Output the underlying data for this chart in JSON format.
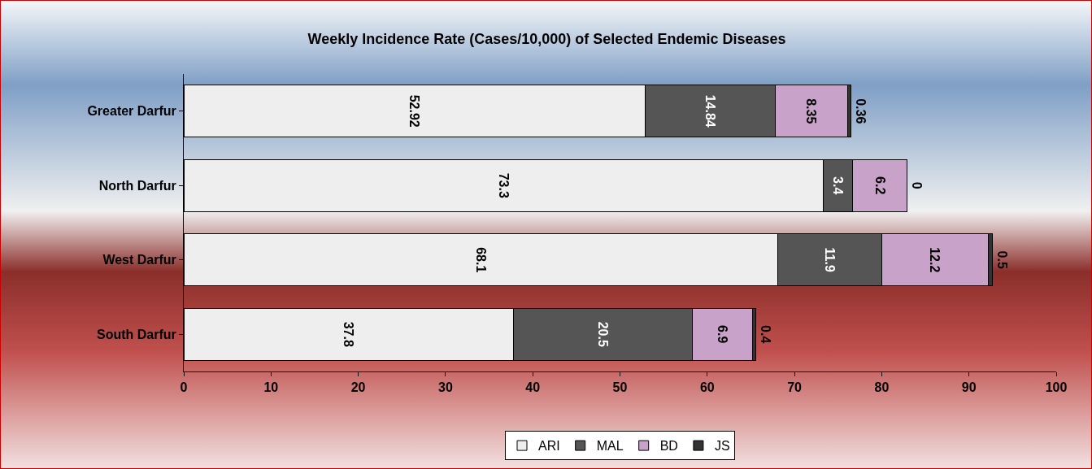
{
  "chart_data": {
    "type": "bar",
    "orientation": "horizontal",
    "stacked": true,
    "title": "Weekly Incidence Rate (Cases/10,000) of Selected Endemic Diseases",
    "categories": [
      "Greater Darfur",
      "North Darfur",
      "West Darfur",
      "South Darfur"
    ],
    "series": [
      {
        "name": "ARI",
        "color": "#eeeeee",
        "values": [
          52.92,
          73.3,
          68.1,
          37.8
        ]
      },
      {
        "name": "MAL",
        "color": "#555555",
        "values": [
          14.84,
          3.4,
          11.9,
          20.5
        ]
      },
      {
        "name": "BD",
        "color": "#c8a2c8",
        "values": [
          8.35,
          6.2,
          12.2,
          6.9
        ]
      },
      {
        "name": "JS",
        "color": "#333333",
        "values": [
          0.36,
          0,
          0.5,
          0.4
        ]
      }
    ],
    "xlim": [
      0,
      100
    ],
    "xticks": [
      0,
      10,
      20,
      30,
      40,
      50,
      60,
      70,
      80,
      90,
      100
    ],
    "grid": false,
    "legend": "bottom",
    "data_labels": true
  }
}
